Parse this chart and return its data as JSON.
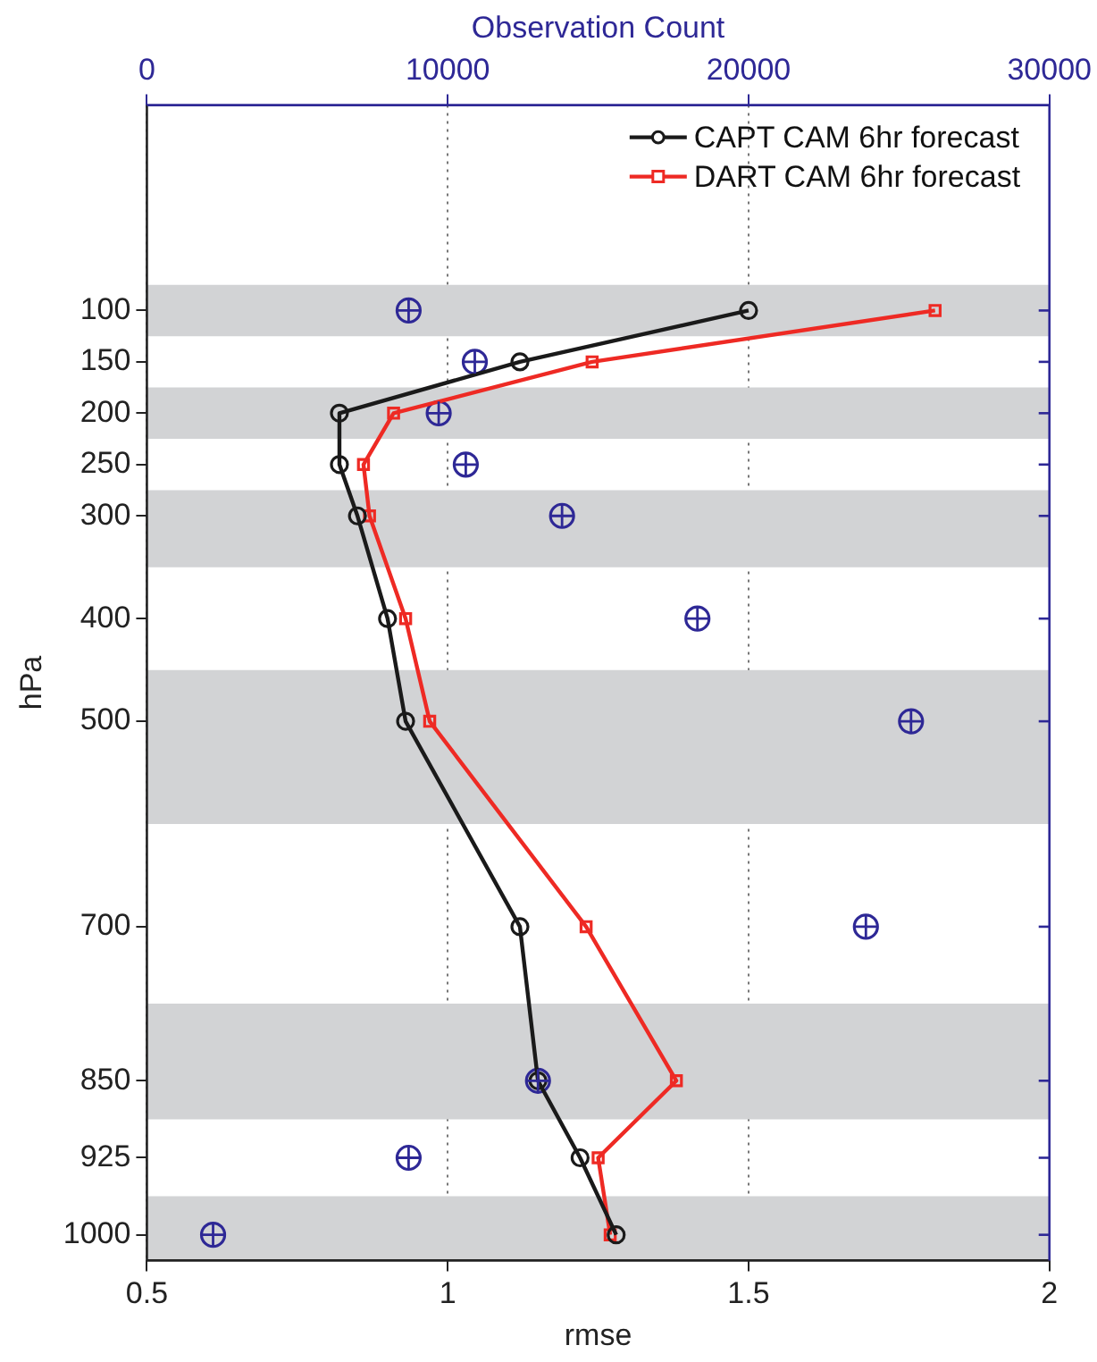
{
  "chart_data": {
    "type": "line",
    "xlabel": "rmse",
    "ylabel": "hPa",
    "x2label": "Observation Count",
    "xlim": [
      0.5,
      2
    ],
    "xticks": [
      0.5,
      1,
      1.5,
      2
    ],
    "x2lim": [
      0,
      30000
    ],
    "x2ticks": [
      0,
      10000,
      20000,
      30000
    ],
    "ylim": [
      1025,
      -100
    ],
    "yticks": [
      100,
      150,
      200,
      250,
      300,
      400,
      500,
      700,
      850,
      925,
      1000
    ],
    "grid": "x",
    "legend": "top right",
    "bands": [
      {
        "axis": "y",
        "from": 75,
        "to": 125,
        "color": "#d2d3d5"
      },
      {
        "axis": "y",
        "from": 175,
        "to": 225,
        "color": "#d2d3d5"
      },
      {
        "axis": "y",
        "from": 275,
        "to": 350,
        "color": "#d2d3d5"
      },
      {
        "axis": "y",
        "from": 450,
        "to": 600,
        "color": "#d2d3d5"
      },
      {
        "axis": "y",
        "from": 775,
        "to": 887.5,
        "color": "#d2d3d5"
      },
      {
        "axis": "y",
        "from": 962.5,
        "to": 1025,
        "color": "#d2d3d5"
      }
    ],
    "series": [
      {
        "name": "CAPT CAM 6hr forecast",
        "marker": "circle",
        "color": "#1a1a1a",
        "x": [
          1.5,
          1.12,
          0.82,
          0.82,
          0.85,
          0.9,
          0.93,
          1.12,
          1.15,
          1.22,
          1.28
        ],
        "values": [
          100,
          150,
          200,
          250,
          300,
          400,
          500,
          700,
          850,
          925,
          1000
        ]
      },
      {
        "name": "DART CAM 6hr forecast",
        "marker": "square",
        "color": "#ee2a24",
        "x": [
          1.81,
          1.24,
          0.91,
          0.86,
          0.87,
          0.93,
          0.97,
          1.23,
          1.38,
          1.25,
          1.27
        ],
        "values": [
          100,
          150,
          200,
          250,
          300,
          400,
          500,
          700,
          850,
          925,
          1000
        ]
      },
      {
        "type": "scatter",
        "marker": "circle",
        "axis": "x2",
        "color": "#2e2896",
        "x": [
          8700,
          10900,
          9700,
          10600,
          13800,
          18300,
          25400,
          23900,
          13000,
          8700,
          2200
        ],
        "values": [
          100,
          150,
          200,
          250,
          300,
          400,
          500,
          700,
          850,
          925,
          1000
        ]
      }
    ]
  }
}
